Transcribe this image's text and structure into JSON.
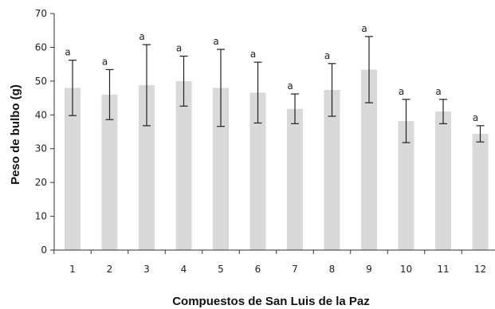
{
  "chart_data": {
    "type": "bar",
    "categories": [
      "1",
      "2",
      "3",
      "4",
      "5",
      "6",
      "7",
      "8",
      "9",
      "10",
      "11",
      "12"
    ],
    "series": [
      {
        "values": [
          48.0,
          46.0,
          48.8,
          50.0,
          48.0,
          46.6,
          41.8,
          47.4,
          53.4,
          38.2,
          41.0,
          34.4
        ],
        "error": [
          8.2,
          7.4,
          12.0,
          7.4,
          11.4,
          9.0,
          4.4,
          7.8,
          9.8,
          6.4,
          3.6,
          2.4
        ],
        "labels": [
          "a",
          "a",
          "a",
          "a",
          "a",
          "a",
          "a",
          "a",
          "a",
          "a",
          "a",
          "a"
        ]
      }
    ],
    "title": "",
    "xlabel": "Compuestos de San Luis de la Paz",
    "ylabel": "Peso de bulbo (g)",
    "ylim": [
      0,
      70
    ],
    "yticks": [
      "0",
      "10",
      "20",
      "30",
      "40",
      "50",
      "60",
      "70"
    ],
    "grid": false,
    "colors": {
      "bar": "#d9d9d9",
      "error_bar": "#222222",
      "axis": "#333333"
    }
  }
}
